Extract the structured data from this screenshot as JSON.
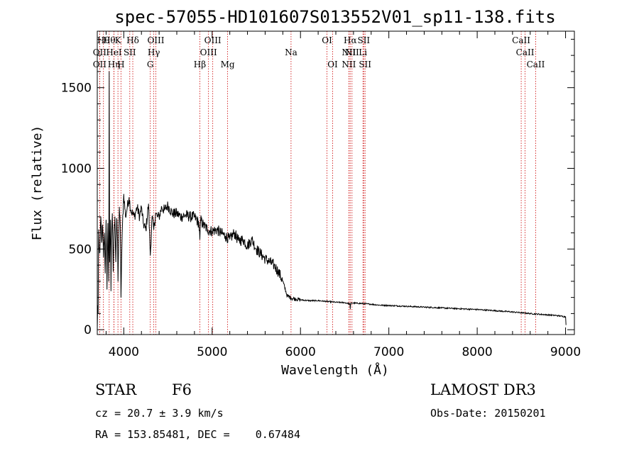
{
  "chart_data": {
    "type": "line",
    "title": "spec-57055-HD101607S013552V01_sp11-138.fits",
    "xlabel": "Wavelength (Å)",
    "ylabel": "Flux (relative)",
    "xlim": [
      3700,
      9100
    ],
    "ylim": [
      -30,
      1850
    ],
    "xticks": [
      4000,
      5000,
      6000,
      7000,
      8000,
      9000
    ],
    "yticks": [
      0,
      500,
      1000,
      1500
    ],
    "series": [
      {
        "name": "flux",
        "x": [
          3700,
          3705,
          3710,
          3715,
          3720,
          3730,
          3740,
          3750,
          3760,
          3770,
          3780,
          3790,
          3800,
          3810,
          3820,
          3830,
          3835,
          3840,
          3850,
          3855,
          3860,
          3870,
          3880,
          3890,
          3900,
          3910,
          3920,
          3930,
          3935,
          3940,
          3950,
          3960,
          3968,
          3975,
          3985,
          4000,
          4020,
          4040,
          4060,
          4080,
          4100,
          4120,
          4150,
          4180,
          4200,
          4220,
          4250,
          4280,
          4300,
          4320,
          4340,
          4360,
          4380,
          4400,
          4430,
          4460,
          4500,
          4550,
          4600,
          4650,
          4700,
          4750,
          4800,
          4850,
          4861,
          4870,
          4900,
          4950,
          5000,
          5050,
          5100,
          5150,
          5200,
          5250,
          5300,
          5350,
          5400,
          5450,
          5500,
          5550,
          5600,
          5650,
          5700,
          5750,
          5800,
          5850,
          5900,
          5950,
          6000,
          6100,
          6200,
          6300,
          6400,
          6500,
          6560,
          6563,
          6570,
          6600,
          6700,
          6800,
          6900,
          7000,
          7200,
          7400,
          7600,
          7800,
          8000,
          8200,
          8400,
          8600,
          8800,
          8900,
          9000,
          9005
        ],
        "values": [
          0,
          150,
          100,
          620,
          500,
          480,
          700,
          540,
          650,
          450,
          600,
          350,
          680,
          250,
          660,
          300,
          1600,
          420,
          680,
          240,
          550,
          720,
          360,
          600,
          700,
          420,
          690,
          550,
          300,
          500,
          760,
          640,
          200,
          420,
          650,
          840,
          700,
          760,
          820,
          740,
          720,
          700,
          760,
          700,
          760,
          660,
          620,
          780,
          460,
          700,
          620,
          720,
          700,
          700,
          760,
          740,
          770,
          720,
          720,
          700,
          710,
          700,
          700,
          660,
          560,
          680,
          650,
          620,
          610,
          620,
          600,
          580,
          560,
          600,
          550,
          560,
          520,
          560,
          500,
          470,
          440,
          420,
          400,
          360,
          300,
          210,
          195,
          190,
          185,
          180,
          180,
          175,
          170,
          168,
          160,
          130,
          165,
          165,
          162,
          158,
          152,
          150,
          145,
          140,
          135,
          130,
          125,
          118,
          110,
          100,
          92,
          88,
          80,
          30
        ]
      }
    ],
    "annotations": [
      {
        "x": 3770,
        "row": 1,
        "label": "Hθ"
      },
      {
        "x": 3727,
        "row": 2,
        "label": "OII"
      },
      {
        "x": 3727,
        "row": 3,
        "label": "OII"
      },
      {
        "x": 3835,
        "row": 1,
        "label": "Hθ"
      },
      {
        "x": 3889,
        "row": 2,
        "label": "HeI"
      },
      {
        "x": 3889,
        "row": 3,
        "label": "Hη"
      },
      {
        "x": 3934,
        "row": 1,
        "label": "K"
      },
      {
        "x": 3968,
        "row": 3,
        "label": "H"
      },
      {
        "x": 4068,
        "row": 2,
        "label": "SII"
      },
      {
        "x": 4102,
        "row": 1,
        "label": "Hδ"
      },
      {
        "x": 4300,
        "row": 3,
        "label": "G"
      },
      {
        "x": 4340,
        "row": 2,
        "label": "Hγ"
      },
      {
        "x": 4363,
        "row": 1,
        "label": "OIII"
      },
      {
        "x": 4861,
        "row": 3,
        "label": "Hβ"
      },
      {
        "x": 4959,
        "row": 2,
        "label": "OIII"
      },
      {
        "x": 5007,
        "row": 1,
        "label": "OIII"
      },
      {
        "x": 5175,
        "row": 3,
        "label": "Mg"
      },
      {
        "x": 5893,
        "row": 2,
        "label": "Na"
      },
      {
        "x": 6300,
        "row": 1,
        "label": "OI"
      },
      {
        "x": 6364,
        "row": 3,
        "label": "OI"
      },
      {
        "x": 6548,
        "row": 2,
        "label": "NII"
      },
      {
        "x": 6548,
        "row": 3,
        "label": "NII"
      },
      {
        "x": 6563,
        "row": 1,
        "label": "Hα"
      },
      {
        "x": 6583,
        "row": 2,
        "label": "NII"
      },
      {
        "x": 6707,
        "row": 2,
        "label": "Li"
      },
      {
        "x": 6716,
        "row": 1,
        "label": "SII"
      },
      {
        "x": 6731,
        "row": 3,
        "label": "SII"
      },
      {
        "x": 8498,
        "row": 1,
        "label": "CaII"
      },
      {
        "x": 8542,
        "row": 2,
        "label": "CaII"
      },
      {
        "x": 8662,
        "row": 3,
        "label": "CaII"
      }
    ]
  },
  "info": {
    "object_class": "STAR",
    "subclass": "F6",
    "survey": "LAMOST DR3",
    "cz": "cz = 20.7 ± 3.9 km/s",
    "obs_date": "Obs-Date: 20150201",
    "coords": "RA = 153.85481, DEC =    0.67484"
  },
  "colors": {
    "line_marker": "#cc0000",
    "spectrum": "#000000"
  }
}
